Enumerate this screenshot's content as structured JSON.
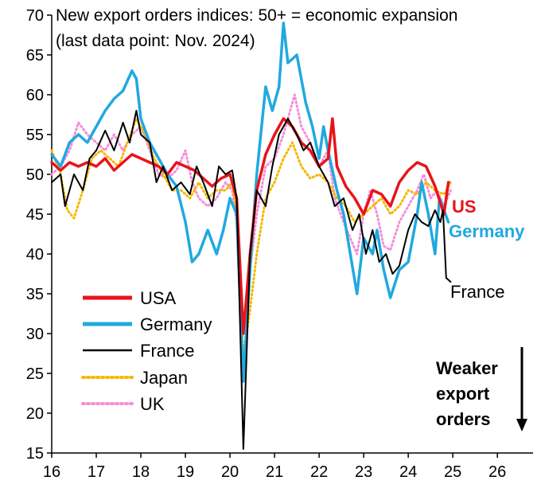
{
  "chart_data": {
    "type": "line",
    "title_line1": "New export orders indices: 50+ = economic expansion",
    "title_line2": "(last data point: Nov. 2024)",
    "xlabel": "",
    "ylabel": "",
    "xlim": [
      2016,
      2026.8
    ],
    "ylim": [
      15,
      70
    ],
    "xticks": [
      16,
      17,
      18,
      19,
      20,
      21,
      22,
      23,
      24,
      25,
      26
    ],
    "yticks": [
      15,
      20,
      25,
      30,
      35,
      40,
      45,
      50,
      55,
      60,
      65,
      70
    ],
    "grid": false,
    "legend_position": "bottom-left",
    "end_labels": {
      "us": "US",
      "germany": "Germany",
      "france": "France"
    },
    "annotation": [
      "Weaker",
      "export",
      "orders"
    ],
    "colors": {
      "usa": "#e8131b",
      "germany": "#21a9df",
      "france": "#000000",
      "japan": "#f5b800",
      "uk": "#f58fd8"
    },
    "series": [
      {
        "name": "USA",
        "points": [
          [
            2016.0,
            51.5
          ],
          [
            2016.2,
            50.5
          ],
          [
            2016.4,
            51.5
          ],
          [
            2016.6,
            51.0
          ],
          [
            2016.8,
            51.5
          ],
          [
            2017.0,
            51.0
          ],
          [
            2017.2,
            52.0
          ],
          [
            2017.4,
            50.5
          ],
          [
            2017.6,
            51.5
          ],
          [
            2017.8,
            52.5
          ],
          [
            2018.0,
            52.0
          ],
          [
            2018.2,
            51.5
          ],
          [
            2018.4,
            51.0
          ],
          [
            2018.6,
            50.0
          ],
          [
            2018.8,
            51.5
          ],
          [
            2019.0,
            51.0
          ],
          [
            2019.2,
            50.5
          ],
          [
            2019.4,
            49.5
          ],
          [
            2019.6,
            48.5
          ],
          [
            2019.8,
            49.5
          ],
          [
            2020.0,
            50.0
          ],
          [
            2020.15,
            47.0
          ],
          [
            2020.3,
            30.0
          ],
          [
            2020.45,
            40.0
          ],
          [
            2020.6,
            48.0
          ],
          [
            2020.8,
            52.5
          ],
          [
            2021.0,
            55.0
          ],
          [
            2021.2,
            57.0
          ],
          [
            2021.4,
            56.0
          ],
          [
            2021.6,
            54.0
          ],
          [
            2021.8,
            53.0
          ],
          [
            2022.0,
            51.0
          ],
          [
            2022.2,
            52.0
          ],
          [
            2022.3,
            57.0
          ],
          [
            2022.4,
            51.0
          ],
          [
            2022.6,
            48.5
          ],
          [
            2022.8,
            47.0
          ],
          [
            2022.9,
            46.0
          ],
          [
            2023.0,
            45.0
          ],
          [
            2023.2,
            48.0
          ],
          [
            2023.4,
            47.5
          ],
          [
            2023.6,
            46.0
          ],
          [
            2023.8,
            49.0
          ],
          [
            2024.0,
            50.5
          ],
          [
            2024.2,
            51.5
          ],
          [
            2024.4,
            51.0
          ],
          [
            2024.6,
            48.5
          ],
          [
            2024.8,
            45.0
          ],
          [
            2024.9,
            49.0
          ]
        ]
      },
      {
        "name": "Germany",
        "points": [
          [
            2016.0,
            52.5
          ],
          [
            2016.2,
            51.0
          ],
          [
            2016.4,
            54.0
          ],
          [
            2016.6,
            55.0
          ],
          [
            2016.8,
            54.0
          ],
          [
            2017.0,
            56.0
          ],
          [
            2017.2,
            58.0
          ],
          [
            2017.4,
            59.5
          ],
          [
            2017.6,
            60.5
          ],
          [
            2017.8,
            63.0
          ],
          [
            2017.9,
            62.0
          ],
          [
            2018.0,
            57.0
          ],
          [
            2018.2,
            54.0
          ],
          [
            2018.4,
            52.0
          ],
          [
            2018.6,
            50.0
          ],
          [
            2018.8,
            48.5
          ],
          [
            2019.0,
            44.0
          ],
          [
            2019.15,
            39.0
          ],
          [
            2019.3,
            40.0
          ],
          [
            2019.5,
            43.0
          ],
          [
            2019.7,
            40.0
          ],
          [
            2019.85,
            43.0
          ],
          [
            2020.0,
            47.0
          ],
          [
            2020.15,
            45.0
          ],
          [
            2020.3,
            24.0
          ],
          [
            2020.45,
            38.0
          ],
          [
            2020.6,
            50.0
          ],
          [
            2020.8,
            61.0
          ],
          [
            2020.95,
            58.0
          ],
          [
            2021.1,
            61.0
          ],
          [
            2021.2,
            69.0
          ],
          [
            2021.3,
            64.0
          ],
          [
            2021.5,
            65.0
          ],
          [
            2021.7,
            59.0
          ],
          [
            2021.85,
            56.0
          ],
          [
            2022.0,
            52.0
          ],
          [
            2022.1,
            56.0
          ],
          [
            2022.2,
            53.0
          ],
          [
            2022.4,
            48.0
          ],
          [
            2022.55,
            45.0
          ],
          [
            2022.7,
            40.0
          ],
          [
            2022.85,
            35.0
          ],
          [
            2023.0,
            42.0
          ],
          [
            2023.2,
            40.0
          ],
          [
            2023.3,
            43.0
          ],
          [
            2023.45,
            38.0
          ],
          [
            2023.6,
            34.5
          ],
          [
            2023.8,
            38.0
          ],
          [
            2024.0,
            39.0
          ],
          [
            2024.2,
            45.0
          ],
          [
            2024.3,
            49.0
          ],
          [
            2024.45,
            45.0
          ],
          [
            2024.6,
            40.0
          ],
          [
            2024.7,
            47.0
          ],
          [
            2024.9,
            44.0
          ]
        ]
      },
      {
        "name": "France",
        "points": [
          [
            2016.0,
            49.0
          ],
          [
            2016.2,
            50.0
          ],
          [
            2016.3,
            46.0
          ],
          [
            2016.5,
            50.0
          ],
          [
            2016.7,
            48.0
          ],
          [
            2016.85,
            52.0
          ],
          [
            2017.0,
            53.0
          ],
          [
            2017.2,
            55.5
          ],
          [
            2017.4,
            53.0
          ],
          [
            2017.6,
            56.5
          ],
          [
            2017.75,
            54.0
          ],
          [
            2017.9,
            58.0
          ],
          [
            2018.0,
            55.0
          ],
          [
            2018.2,
            54.0
          ],
          [
            2018.35,
            49.0
          ],
          [
            2018.5,
            51.0
          ],
          [
            2018.7,
            48.0
          ],
          [
            2018.9,
            49.0
          ],
          [
            2019.1,
            47.5
          ],
          [
            2019.25,
            51.0
          ],
          [
            2019.4,
            49.0
          ],
          [
            2019.6,
            46.0
          ],
          [
            2019.75,
            51.0
          ],
          [
            2019.9,
            50.0
          ],
          [
            2020.05,
            50.5
          ],
          [
            2020.15,
            47.0
          ],
          [
            2020.3,
            15.5
          ],
          [
            2020.45,
            40.0
          ],
          [
            2020.6,
            48.0
          ],
          [
            2020.8,
            46.0
          ],
          [
            2020.95,
            51.0
          ],
          [
            2021.1,
            55.0
          ],
          [
            2021.3,
            57.0
          ],
          [
            2021.5,
            55.0
          ],
          [
            2021.65,
            53.0
          ],
          [
            2021.8,
            54.0
          ],
          [
            2022.0,
            51.0
          ],
          [
            2022.2,
            49.0
          ],
          [
            2022.35,
            46.0
          ],
          [
            2022.55,
            47.0
          ],
          [
            2022.75,
            43.0
          ],
          [
            2022.9,
            45.0
          ],
          [
            2023.05,
            40.0
          ],
          [
            2023.2,
            43.0
          ],
          [
            2023.35,
            39.0
          ],
          [
            2023.5,
            40.0
          ],
          [
            2023.65,
            37.5
          ],
          [
            2023.8,
            38.5
          ],
          [
            2024.0,
            43.0
          ],
          [
            2024.15,
            45.0
          ],
          [
            2024.3,
            44.0
          ],
          [
            2024.45,
            43.5
          ],
          [
            2024.6,
            45.5
          ],
          [
            2024.72,
            44.0
          ],
          [
            2024.78,
            45.5
          ],
          [
            2024.85,
            37.0
          ],
          [
            2024.95,
            36.5
          ]
        ]
      },
      {
        "name": "Japan",
        "points": [
          [
            2016.0,
            53.0
          ],
          [
            2016.2,
            50.0
          ],
          [
            2016.35,
            45.5
          ],
          [
            2016.5,
            44.5
          ],
          [
            2016.7,
            48.0
          ],
          [
            2016.9,
            52.0
          ],
          [
            2017.1,
            53.0
          ],
          [
            2017.3,
            52.0
          ],
          [
            2017.5,
            51.0
          ],
          [
            2017.7,
            54.0
          ],
          [
            2017.9,
            57.0
          ],
          [
            2018.1,
            55.0
          ],
          [
            2018.3,
            52.0
          ],
          [
            2018.5,
            50.0
          ],
          [
            2018.7,
            48.0
          ],
          [
            2018.9,
            48.0
          ],
          [
            2019.1,
            47.0
          ],
          [
            2019.3,
            49.0
          ],
          [
            2019.5,
            47.0
          ],
          [
            2019.7,
            48.0
          ],
          [
            2019.9,
            48.0
          ],
          [
            2020.05,
            49.0
          ],
          [
            2020.15,
            45.0
          ],
          [
            2020.3,
            27.0
          ],
          [
            2020.45,
            33.0
          ],
          [
            2020.6,
            40.0
          ],
          [
            2020.8,
            47.0
          ],
          [
            2021.0,
            49.0
          ],
          [
            2021.2,
            52.0
          ],
          [
            2021.4,
            54.0
          ],
          [
            2021.6,
            51.0
          ],
          [
            2021.8,
            49.5
          ],
          [
            2022.0,
            50.0
          ],
          [
            2022.2,
            49.0
          ],
          [
            2022.4,
            47.0
          ],
          [
            2022.6,
            46.0
          ],
          [
            2022.8,
            44.0
          ],
          [
            2023.0,
            45.0
          ],
          [
            2023.2,
            46.0
          ],
          [
            2023.4,
            47.0
          ],
          [
            2023.6,
            45.0
          ],
          [
            2023.8,
            46.0
          ],
          [
            2024.0,
            48.0
          ],
          [
            2024.2,
            47.5
          ],
          [
            2024.4,
            49.0
          ],
          [
            2024.6,
            48.0
          ],
          [
            2024.8,
            47.5
          ],
          [
            2024.95,
            49.0
          ]
        ]
      },
      {
        "name": "UK",
        "points": [
          [
            2016.0,
            50.0
          ],
          [
            2016.2,
            51.0
          ],
          [
            2016.4,
            53.0
          ],
          [
            2016.6,
            56.5
          ],
          [
            2016.8,
            55.0
          ],
          [
            2017.0,
            54.0
          ],
          [
            2017.2,
            53.0
          ],
          [
            2017.4,
            55.0
          ],
          [
            2017.6,
            53.0
          ],
          [
            2017.8,
            55.0
          ],
          [
            2018.0,
            56.0
          ],
          [
            2018.2,
            53.0
          ],
          [
            2018.4,
            50.0
          ],
          [
            2018.6,
            49.5
          ],
          [
            2018.8,
            50.5
          ],
          [
            2019.0,
            53.0
          ],
          [
            2019.15,
            49.0
          ],
          [
            2019.3,
            47.0
          ],
          [
            2019.5,
            46.0
          ],
          [
            2019.7,
            47.0
          ],
          [
            2019.9,
            49.0
          ],
          [
            2020.05,
            48.0
          ],
          [
            2020.15,
            44.0
          ],
          [
            2020.3,
            25.0
          ],
          [
            2020.45,
            38.0
          ],
          [
            2020.6,
            45.0
          ],
          [
            2020.8,
            51.0
          ],
          [
            2021.0,
            52.0
          ],
          [
            2021.2,
            55.0
          ],
          [
            2021.35,
            58.0
          ],
          [
            2021.45,
            60.0
          ],
          [
            2021.6,
            56.0
          ],
          [
            2021.8,
            54.0
          ],
          [
            2022.0,
            51.0
          ],
          [
            2022.2,
            53.0
          ],
          [
            2022.35,
            47.0
          ],
          [
            2022.55,
            44.0
          ],
          [
            2022.7,
            42.0
          ],
          [
            2022.85,
            40.0
          ],
          [
            2023.0,
            45.0
          ],
          [
            2023.15,
            48.0
          ],
          [
            2023.3,
            45.0
          ],
          [
            2023.45,
            41.0
          ],
          [
            2023.6,
            40.5
          ],
          [
            2023.8,
            44.0
          ],
          [
            2024.0,
            46.0
          ],
          [
            2024.2,
            48.0
          ],
          [
            2024.35,
            50.0
          ],
          [
            2024.5,
            47.0
          ],
          [
            2024.65,
            48.0
          ],
          [
            2024.8,
            46.0
          ],
          [
            2024.95,
            48.0
          ]
        ]
      }
    ]
  }
}
